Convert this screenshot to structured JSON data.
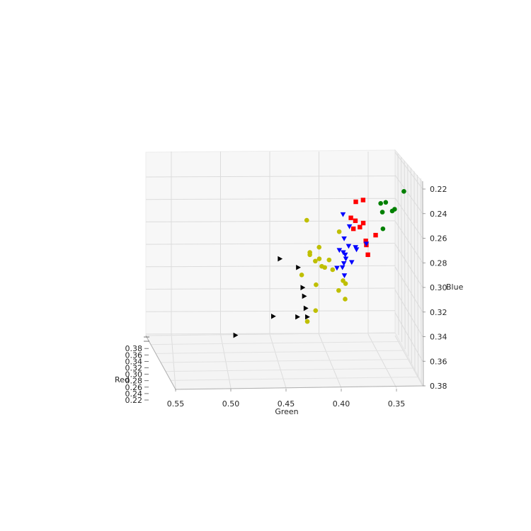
{
  "chart_data": {
    "type": "scatter",
    "dimensions": 3,
    "xlabel": "Red",
    "ylabel": "Green",
    "zlabel": "Blue",
    "x_ticks": [
      "0.22",
      "0.24",
      "0.26",
      "0.28",
      "0.30",
      "0.32",
      "0.34",
      "0.36",
      "0.38"
    ],
    "y_ticks": [
      "0.55",
      "0.50",
      "0.45",
      "0.40",
      "0.35"
    ],
    "z_ticks": [
      "0.22",
      "0.24",
      "0.26",
      "0.28",
      "0.30",
      "0.32",
      "0.34",
      "0.36",
      "0.38"
    ],
    "xlim": [
      0.22,
      0.38
    ],
    "ylim": [
      0.33,
      0.57
    ],
    "zlim": [
      0.22,
      0.38
    ],
    "z_axis_inverted": true,
    "grid": true,
    "series": [
      {
        "marker": "circle",
        "color": "#008000",
        "points": [
          {
            "red": 0.26,
            "green": 0.32,
            "blue": 0.248
          },
          {
            "red": 0.27,
            "green": 0.34,
            "blue": 0.256
          },
          {
            "red": 0.28,
            "green": 0.335,
            "blue": 0.262
          },
          {
            "red": 0.27,
            "green": 0.331,
            "blue": 0.262
          },
          {
            "red": 0.25,
            "green": 0.342,
            "blue": 0.26
          },
          {
            "red": 0.28,
            "green": 0.345,
            "blue": 0.263
          },
          {
            "red": 0.29,
            "green": 0.346,
            "blue": 0.276
          }
        ]
      },
      {
        "marker": "square",
        "color": "#ff0000",
        "points": [
          {
            "red": 0.27,
            "green": 0.363,
            "blue": 0.254
          },
          {
            "red": 0.28,
            "green": 0.372,
            "blue": 0.254
          },
          {
            "red": 0.28,
            "green": 0.377,
            "blue": 0.268
          },
          {
            "red": 0.29,
            "green": 0.374,
            "blue": 0.269
          },
          {
            "red": 0.29,
            "green": 0.366,
            "blue": 0.271
          },
          {
            "red": 0.3,
            "green": 0.371,
            "blue": 0.273
          },
          {
            "red": 0.29,
            "green": 0.376,
            "blue": 0.276
          },
          {
            "red": 0.3,
            "green": 0.355,
            "blue": 0.28
          },
          {
            "red": 0.3,
            "green": 0.365,
            "blue": 0.285
          },
          {
            "red": 0.31,
            "green": 0.366,
            "blue": 0.287
          },
          {
            "red": 0.32,
            "green": 0.366,
            "blue": 0.294
          }
        ]
      },
      {
        "marker": "triangle-down",
        "color": "#0000ff",
        "points": [
          {
            "red": 0.28,
            "green": 0.385,
            "blue": 0.265
          },
          {
            "red": 0.29,
            "green": 0.38,
            "blue": 0.274
          },
          {
            "red": 0.3,
            "green": 0.387,
            "blue": 0.283
          },
          {
            "red": 0.31,
            "green": 0.366,
            "blue": 0.286
          },
          {
            "red": 0.31,
            "green": 0.384,
            "blue": 0.288
          },
          {
            "red": 0.31,
            "green": 0.377,
            "blue": 0.289
          },
          {
            "red": 0.32,
            "green": 0.395,
            "blue": 0.29
          },
          {
            "red": 0.31,
            "green": 0.376,
            "blue": 0.291
          },
          {
            "red": 0.32,
            "green": 0.391,
            "blue": 0.292
          },
          {
            "red": 0.32,
            "green": 0.389,
            "blue": 0.294
          },
          {
            "red": 0.33,
            "green": 0.39,
            "blue": 0.296
          },
          {
            "red": 0.33,
            "green": 0.384,
            "blue": 0.299
          },
          {
            "red": 0.33,
            "green": 0.392,
            "blue": 0.3
          },
          {
            "red": 0.34,
            "green": 0.395,
            "blue": 0.302
          },
          {
            "red": 0.33,
            "green": 0.399,
            "blue": 0.304
          },
          {
            "red": 0.34,
            "green": 0.393,
            "blue": 0.309
          }
        ]
      },
      {
        "marker": "circle",
        "color": "#bfbf00",
        "points": [
          {
            "red": 0.3,
            "green": 0.425,
            "blue": 0.267
          },
          {
            "red": 0.3,
            "green": 0.392,
            "blue": 0.277
          },
          {
            "red": 0.31,
            "green": 0.414,
            "blue": 0.289
          },
          {
            "red": 0.32,
            "green": 0.425,
            "blue": 0.292
          },
          {
            "red": 0.32,
            "green": 0.425,
            "blue": 0.294
          },
          {
            "red": 0.33,
            "green": 0.417,
            "blue": 0.296
          },
          {
            "red": 0.33,
            "green": 0.407,
            "blue": 0.297
          },
          {
            "red": 0.33,
            "green": 0.421,
            "blue": 0.298
          },
          {
            "red": 0.34,
            "green": 0.416,
            "blue": 0.301
          },
          {
            "red": 0.34,
            "green": 0.413,
            "blue": 0.302
          },
          {
            "red": 0.34,
            "green": 0.405,
            "blue": 0.304
          },
          {
            "red": 0.35,
            "green": 0.438,
            "blue": 0.307
          },
          {
            "red": 0.35,
            "green": 0.396,
            "blue": 0.312
          },
          {
            "red": 0.36,
            "green": 0.395,
            "blue": 0.313
          },
          {
            "red": 0.36,
            "green": 0.425,
            "blue": 0.314
          },
          {
            "red": 0.36,
            "green": 0.402,
            "blue": 0.319
          },
          {
            "red": 0.37,
            "green": 0.397,
            "blue": 0.325
          },
          {
            "red": 0.37,
            "green": 0.427,
            "blue": 0.335
          },
          {
            "red": 0.38,
            "green": 0.437,
            "blue": 0.343
          }
        ]
      },
      {
        "marker": "triangle-right",
        "color": "#000000",
        "points": [
          {
            "red": 0.33,
            "green": 0.457,
            "blue": 0.296
          },
          {
            "red": 0.34,
            "green": 0.44,
            "blue": 0.302
          },
          {
            "red": 0.35,
            "green": 0.437,
            "blue": 0.318
          },
          {
            "red": 0.36,
            "green": 0.437,
            "blue": 0.324
          },
          {
            "red": 0.37,
            "green": 0.437,
            "blue": 0.333
          },
          {
            "red": 0.37,
            "green": 0.47,
            "blue": 0.34
          },
          {
            "red": 0.38,
            "green": 0.447,
            "blue": 0.339
          },
          {
            "red": 0.38,
            "green": 0.437,
            "blue": 0.339
          },
          {
            "red": 0.38,
            "green": 0.51,
            "blue": 0.355
          }
        ]
      }
    ]
  }
}
